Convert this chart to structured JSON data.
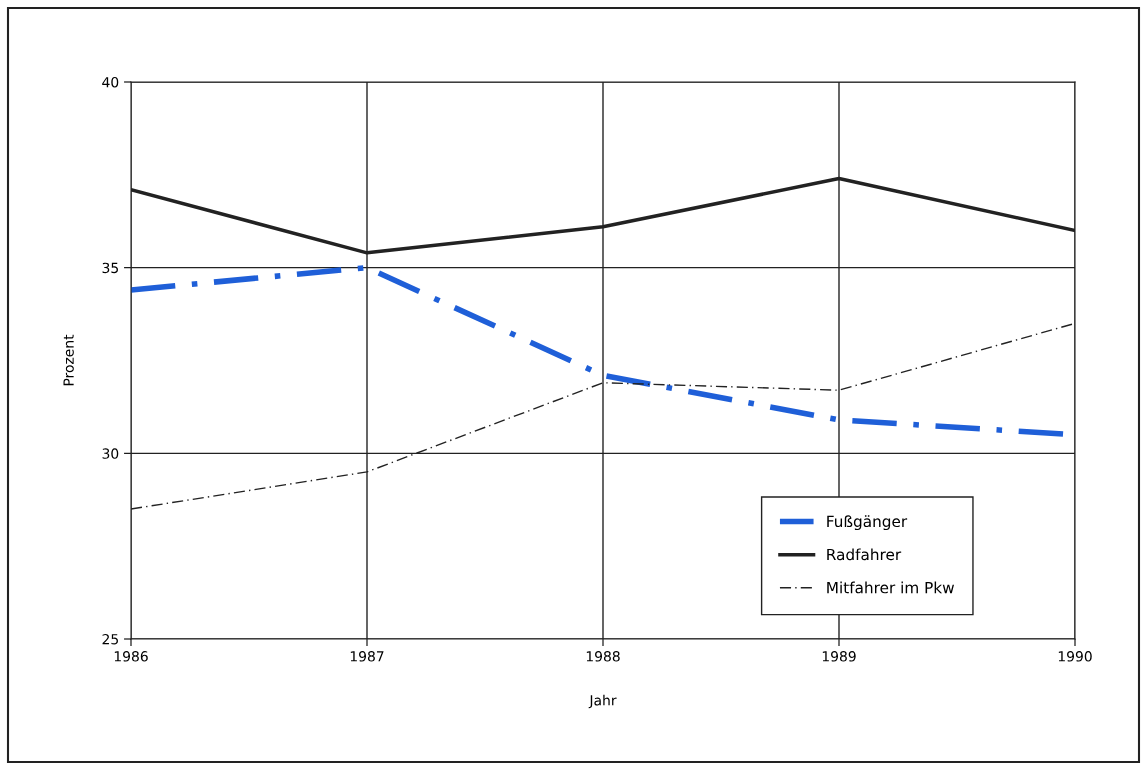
{
  "chart_data": {
    "type": "line",
    "xlabel": "Jahr",
    "ylabel": "Prozent",
    "x": [
      1986,
      1987,
      1988,
      1989,
      1990
    ],
    "series": [
      {
        "name": "Fußgänger",
        "color": "#1f5fd8",
        "line_style": "dashdot",
        "values": [
          34.4,
          35.0,
          32.1,
          30.9,
          30.5
        ]
      },
      {
        "name": "Radfahrer",
        "color": "#222222",
        "line_style": "solid",
        "values": [
          37.1,
          35.4,
          36.1,
          37.4,
          36.0
        ]
      },
      {
        "name": "Mitfahrer im Pkw",
        "color": "#222222",
        "line_style": "dashdot",
        "values": [
          28.5,
          29.5,
          31.9,
          31.7,
          33.5
        ]
      }
    ],
    "xlim": [
      1986,
      1990
    ],
    "xticks": [
      1986,
      1987,
      1988,
      1989,
      1990
    ],
    "ylim": [
      25,
      40
    ],
    "yticks": [
      25,
      30,
      35,
      40
    ],
    "grid": true,
    "legend": "bottom right",
    "marker": "none"
  }
}
